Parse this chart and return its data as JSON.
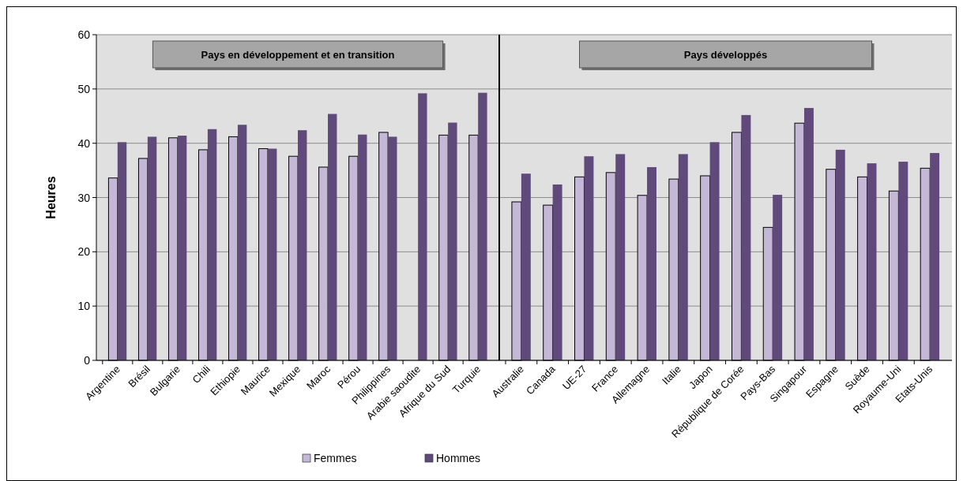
{
  "chart_data": [
    {
      "type": "bar",
      "title": "Pays en développement et en transition",
      "ylabel": "Heures",
      "categories": [
        "Argentine",
        "Brésil",
        "Bulgarie",
        "Chili",
        "Ethiopie",
        "Maurice",
        "Mexique",
        "Maroc",
        "Pérou",
        "Philippines",
        "Arabie saoudite",
        "Afrique du Sud",
        "Turquie"
      ],
      "series": [
        {
          "name": "Femmes",
          "color": "#c5b8d6",
          "values": [
            33.6,
            37.2,
            41.0,
            38.8,
            41.2,
            39.0,
            37.6,
            35.6,
            37.6,
            42.0,
            null,
            41.5,
            41.5
          ]
        },
        {
          "name": "Hommes",
          "color": "#604a7b",
          "values": [
            40.2,
            41.2,
            41.4,
            42.6,
            43.4,
            39.0,
            42.4,
            45.4,
            41.6,
            41.2,
            49.2,
            43.8,
            49.3
          ]
        }
      ],
      "ylim": [
        0,
        60
      ],
      "yticks": [
        0,
        10,
        20,
        30,
        40,
        50,
        60
      ],
      "grid": "y",
      "legend": "bottom"
    },
    {
      "type": "bar",
      "title": "Pays développés",
      "categories": [
        "Australie",
        "Canada",
        "UE-27",
        "France",
        "Allemagne",
        "Italie",
        "Japon",
        "République de Corée",
        "Pays-Bas",
        "Singapour",
        "Espagne",
        "Suède",
        "Royaume-Uni",
        "Etats-Unis"
      ],
      "series": [
        {
          "color": "#c5b8d6",
          "values": [
            29.2,
            28.6,
            33.8,
            34.6,
            30.4,
            33.4,
            34.0,
            42.0,
            24.5,
            43.7,
            35.2,
            33.8,
            31.2,
            35.4
          ]
        },
        {
          "color": "#604a7b",
          "values": [
            34.4,
            32.4,
            37.6,
            38.0,
            35.6,
            38.0,
            40.2,
            45.2,
            30.5,
            46.5,
            38.8,
            36.3,
            36.6,
            38.2
          ]
        }
      ],
      "ylim": [
        0,
        60
      ],
      "yticks": [
        0,
        10,
        20,
        30,
        40,
        50,
        60
      ],
      "grid": "y",
      "tick_labels": "x"
    }
  ]
}
